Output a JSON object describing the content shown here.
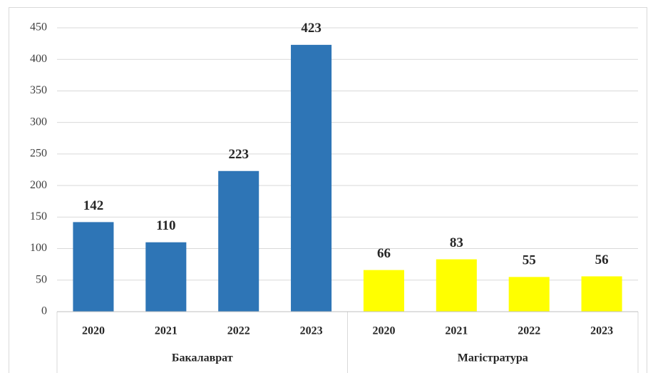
{
  "chart_data": {
    "type": "bar",
    "series": [
      {
        "name": "Бакалаврат",
        "color": "#2e75b6",
        "categories": [
          "2020",
          "2021",
          "2022",
          "2023"
        ],
        "values": [
          142,
          110,
          223,
          423
        ]
      },
      {
        "name": "Магістратура",
        "color": "#ffff00",
        "categories": [
          "2020",
          "2021",
          "2022",
          "2023"
        ],
        "values": [
          66,
          83,
          55,
          56
        ]
      }
    ],
    "ylim": [
      0,
      450
    ],
    "yticks": [
      0,
      50,
      100,
      150,
      200,
      250,
      300,
      350,
      400,
      450
    ],
    "grid": true
  }
}
